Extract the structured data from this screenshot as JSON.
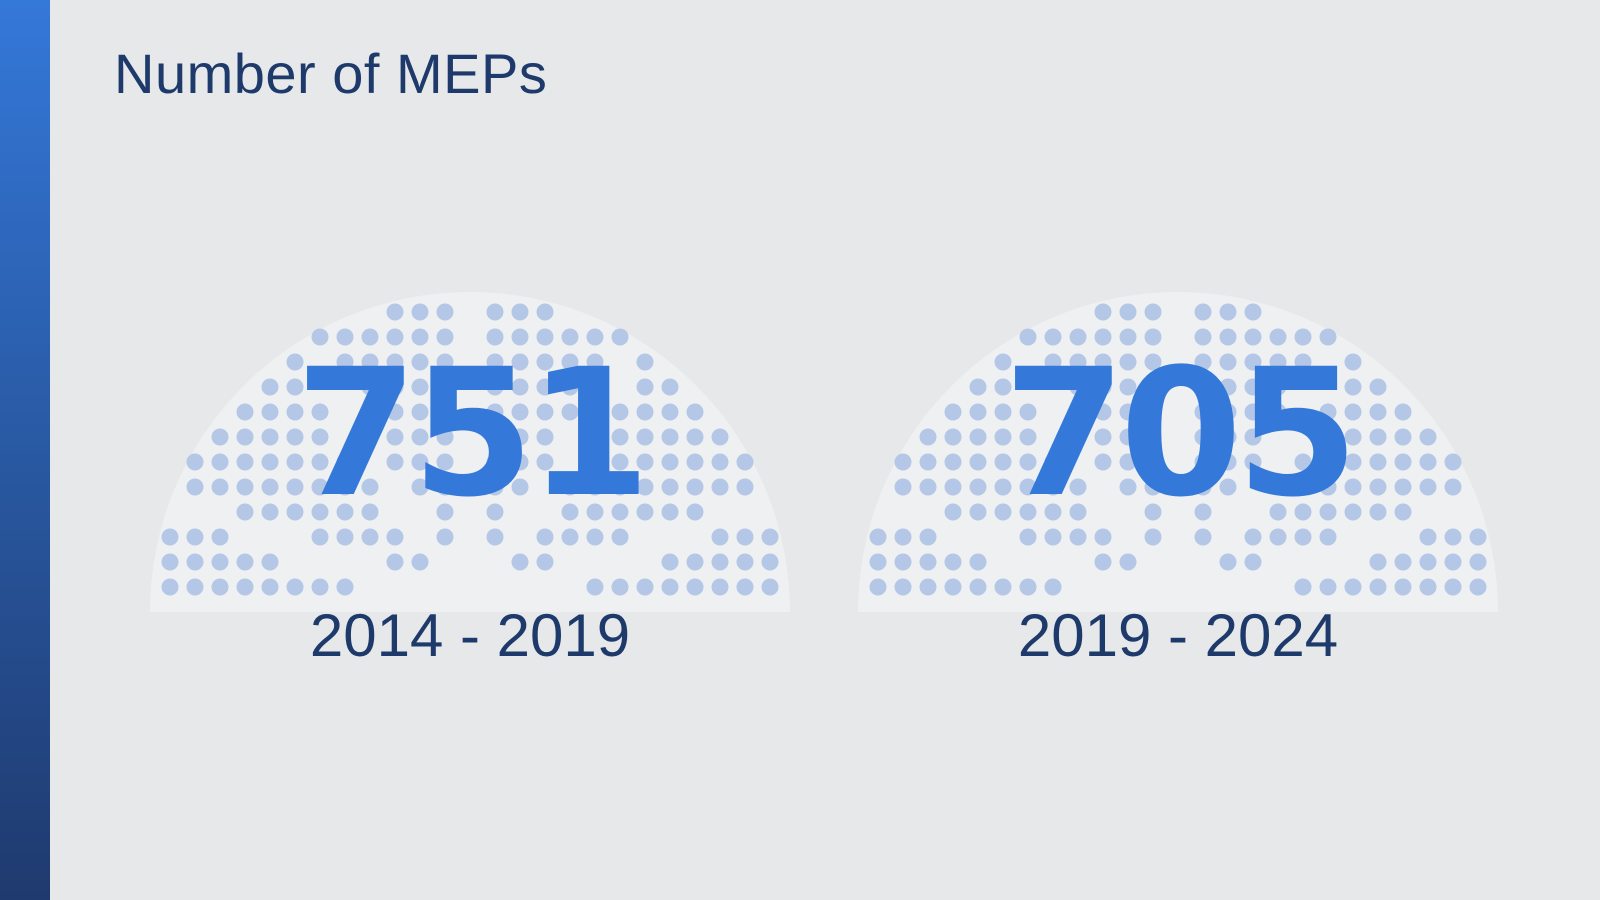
{
  "slide": {
    "title": "Number of MEPs"
  },
  "colors": {
    "accent": "#3478d9",
    "title": "#1e3a6b",
    "background": "#e6e8ea",
    "seat_dot": "#b4c7e6",
    "hemicycle_fill": "#eef0f2"
  },
  "panels": [
    {
      "value": "751",
      "term": "2014 - 2019"
    },
    {
      "value": "705",
      "term": "2019 - 2024"
    }
  ]
}
